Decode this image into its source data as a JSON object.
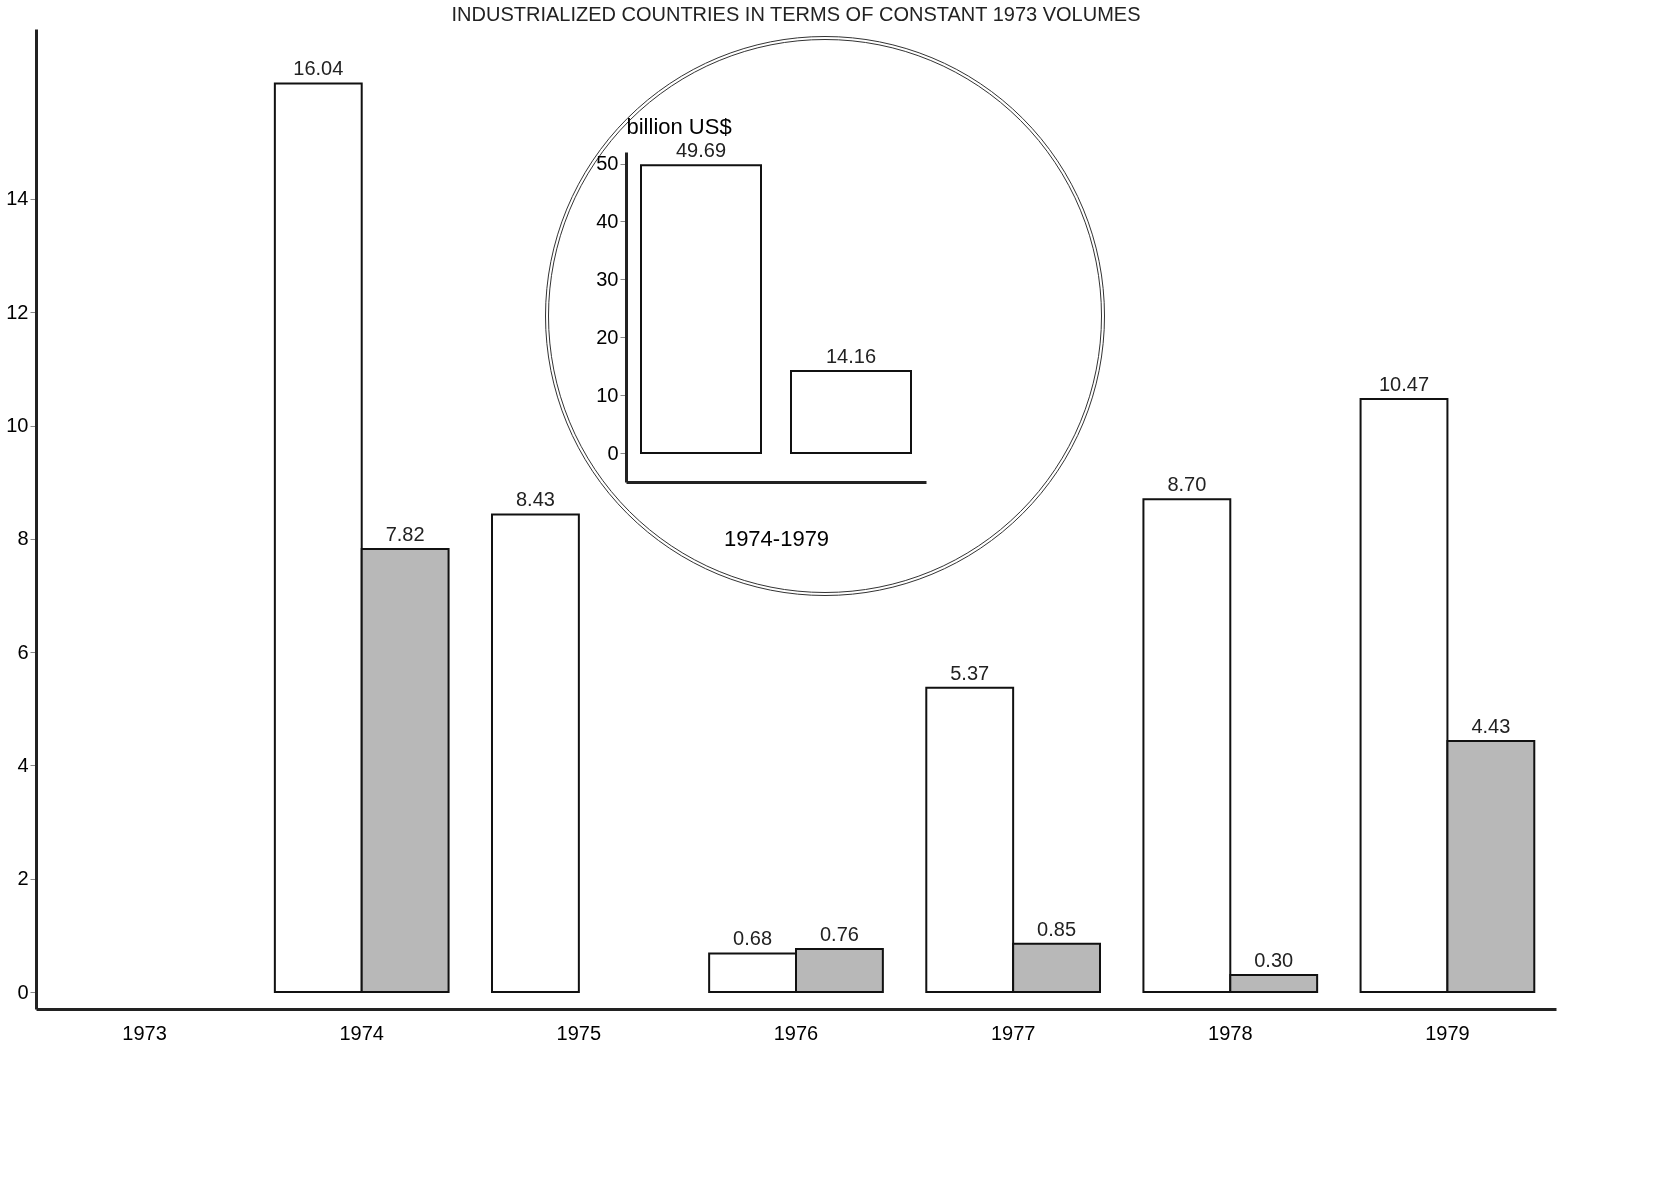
{
  "chart_data": [
    {
      "type": "bar",
      "title": "INDUSTRIALIZED COUNTRIES IN TERMS OF CONSTANT 1973 VOLUMES",
      "categories": [
        "1973",
        "1974",
        "1975",
        "1976",
        "1977",
        "1978",
        "1979"
      ],
      "series": [
        {
          "color": "#ffffff",
          "values": [
            null,
            16.04,
            8.43,
            0.68,
            5.37,
            8.7,
            10.47
          ],
          "value_labels": [
            null,
            "16.04",
            "8.43",
            "0.68",
            "5.37",
            "8.70",
            "10.47"
          ]
        },
        {
          "color": "#b8b8b8",
          "values": [
            null,
            7.82,
            null,
            0.76,
            0.85,
            0.3,
            4.43
          ],
          "value_labels": [
            null,
            "7.82",
            null,
            "0.76",
            "0.85",
            "0.30",
            "4.43"
          ]
        }
      ],
      "ylim": [
        -0.3,
        17
      ],
      "yticks": [
        0,
        2,
        4,
        6,
        8,
        10,
        12,
        14
      ],
      "grid": false
    },
    {
      "type": "bar",
      "ylabel": "billion US$",
      "xlabel": "1974-1979",
      "categories": [
        null,
        null
      ],
      "values": [
        49.69,
        14.16
      ],
      "value_labels": [
        "49.69",
        "14.16"
      ],
      "color": "#ffffff",
      "ylim": [
        -5,
        52
      ],
      "yticks": [
        0,
        10,
        20,
        30,
        40,
        50
      ],
      "grid": false
    }
  ]
}
